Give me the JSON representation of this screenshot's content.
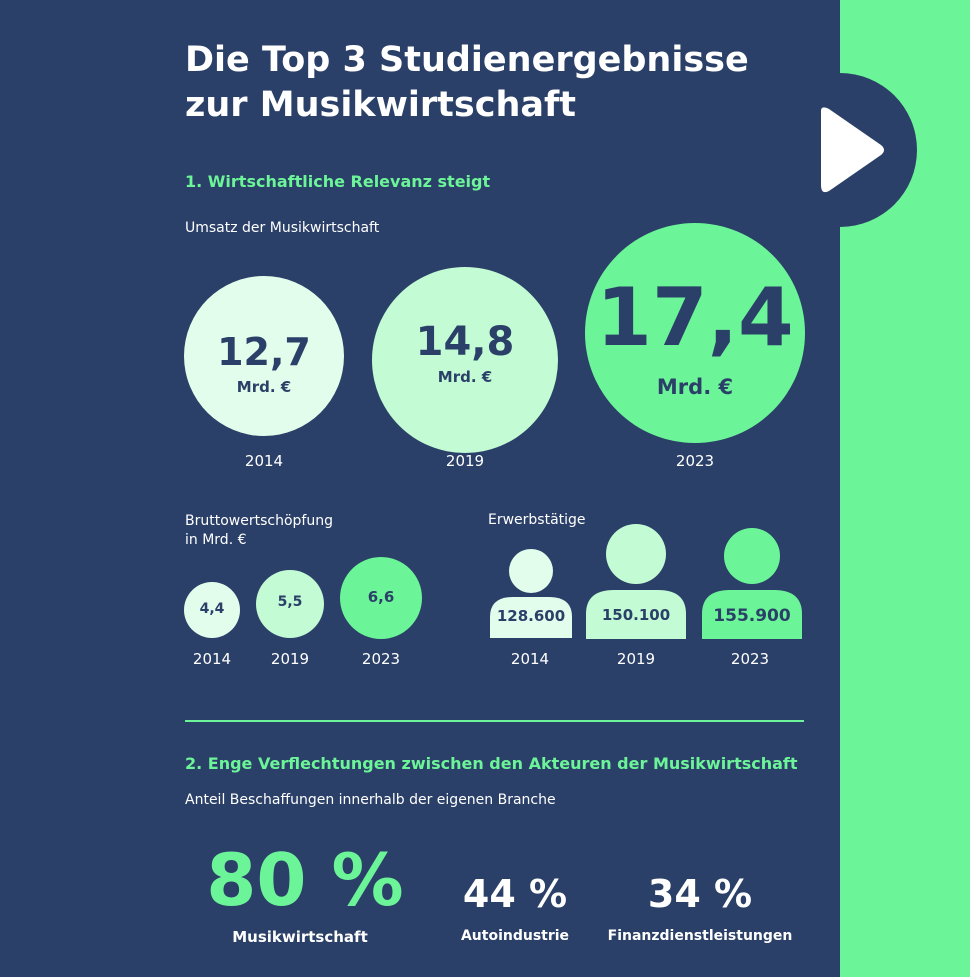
{
  "title_line1": "Die Top 3 Studienergebnisse",
  "title_line2": "zur Musikwirtschaft",
  "colors": {
    "background": "#2b4068",
    "accent": "#6cf598",
    "light1": "#e3fdec",
    "light2": "#c3fbd5"
  },
  "section1": {
    "heading": "1. Wirtschaftliche Relevanz steigt",
    "umsatz_label": "Umsatz der Musikwirtschaft",
    "bws_label_line1": "Bruttowertschöpfung",
    "bws_label_line2": "in Mrd. €",
    "erwerb_label": "Erwerbstätige"
  },
  "section2": {
    "heading": "2. Enge Verflechtungen zwischen den Akteuren der Musikwirtschaft",
    "subtitle": "Anteil Beschaffungen innerhalb der eigenen Branche"
  },
  "chart_data": [
    {
      "type": "bubble",
      "title": "Umsatz der Musikwirtschaft",
      "categories": [
        "2014",
        "2019",
        "2023"
      ],
      "values": [
        12.7,
        14.8,
        17.4
      ],
      "value_labels": [
        "12,7",
        "14,8",
        "17,4"
      ],
      "unit": "Mrd. €"
    },
    {
      "type": "bubble",
      "title": "Bruttowertschöpfung in Mrd. €",
      "categories": [
        "2014",
        "2019",
        "2023"
      ],
      "values": [
        4.4,
        5.5,
        6.6
      ],
      "value_labels": [
        "4,4",
        "5,5",
        "6,6"
      ]
    },
    {
      "type": "pictogram",
      "title": "Erwerbstätige",
      "categories": [
        "2014",
        "2019",
        "2023"
      ],
      "values": [
        128600,
        150100,
        155900
      ],
      "value_labels": [
        "128.600",
        "150.100",
        "155.900"
      ]
    },
    {
      "type": "percent",
      "title": "Anteil Beschaffungen innerhalb der eigenen Branche",
      "categories": [
        "Musikwirtschaft",
        "Autoindustrie",
        "Finanzdienstleistungen"
      ],
      "values": [
        80,
        44,
        34
      ],
      "value_labels": [
        "80 %",
        "44 %",
        "34 %"
      ]
    }
  ]
}
